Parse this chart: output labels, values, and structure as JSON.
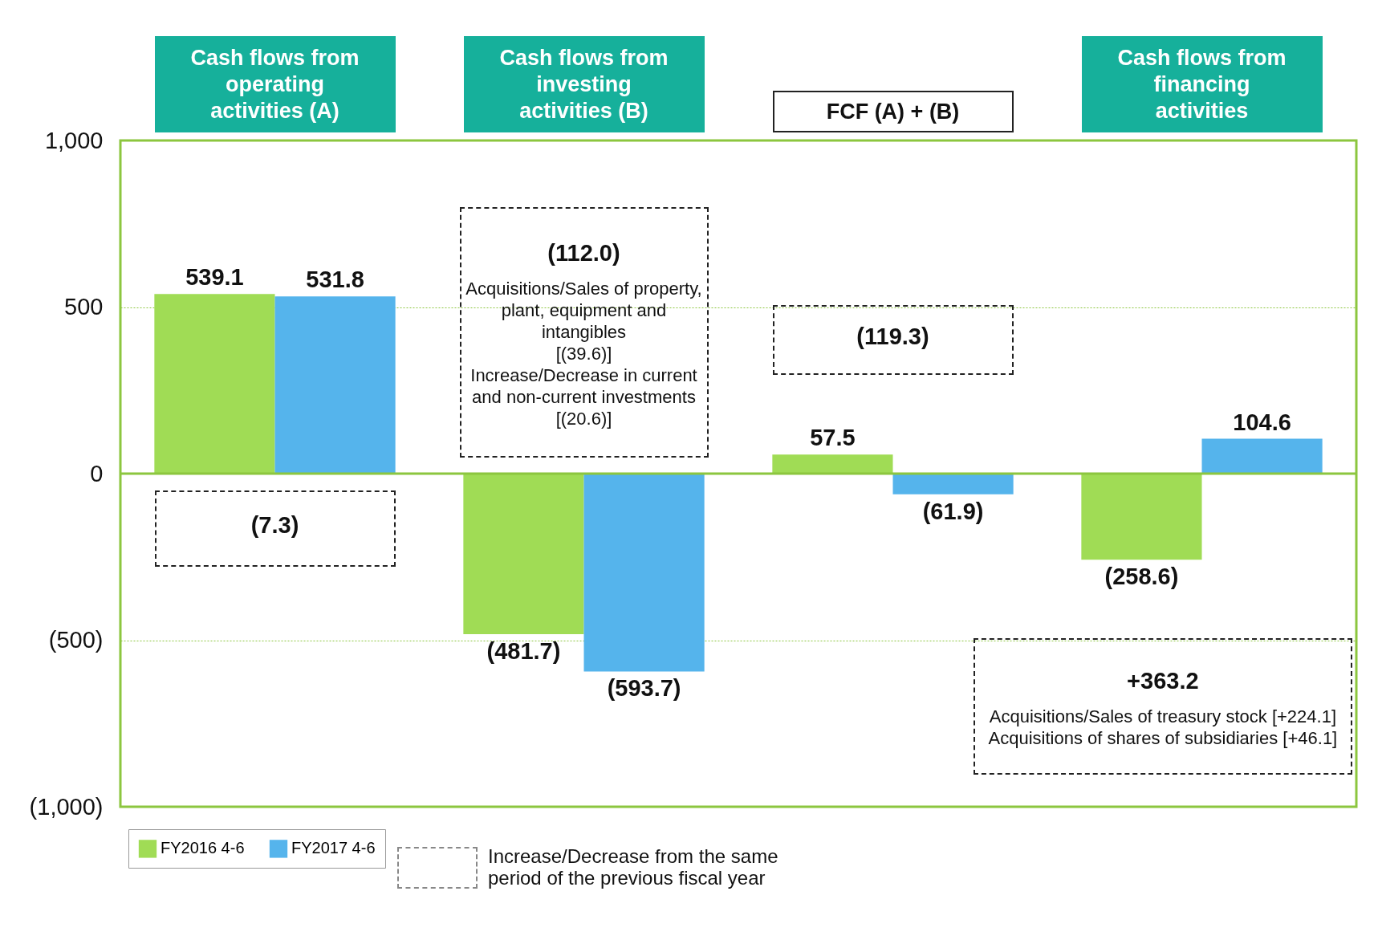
{
  "chart_data": {
    "type": "bar",
    "categories": [
      "Cash flows from operating activities (A)",
      "Cash flows from investing activities (B)",
      "FCF (A) + (B)",
      "Cash flows from financing activities"
    ],
    "series": [
      {
        "name": "FY2016 4-6",
        "color": "#a0dc55",
        "values": [
          539.1,
          -481.7,
          57.5,
          -258.6
        ],
        "value_labels": [
          "539.1",
          "(481.7)",
          "57.5",
          "(258.6)"
        ]
      },
      {
        "name": "FY2017 4-6",
        "color": "#55b4ec",
        "values": [
          531.8,
          -593.7,
          -61.9,
          104.6
        ],
        "value_labels": [
          "531.8",
          "(593.7)",
          "(61.9)",
          "104.6"
        ]
      }
    ],
    "ylim": [
      -1000,
      1000
    ],
    "yticks": [
      {
        "value": -1000,
        "label": "(1,000)"
      },
      {
        "value": -500,
        "label": "(500)"
      },
      0,
      500,
      {
        "value": 1000,
        "label": "1,000"
      }
    ],
    "grid": "y",
    "legend": "bottom",
    "ref_lines": [
      {
        "axis": "y",
        "value": 0,
        "color": "#8cc63f"
      }
    ],
    "annotations": [
      "(7.3)",
      "(112.0)",
      "Acquisitions/Sales of property, plant, equipment and intangibles",
      "[(39.6)]",
      "Increase/Decrease in current and non-current investments",
      "[(20.6)]",
      "(119.3)",
      "+363.2",
      "Acquisitions/Sales of treasury stock [+224.1]",
      "Acquisitions of shares of subsidiaries [+46.1]",
      "Increase/Decrease from the same period of the previous fiscal year"
    ]
  }
}
